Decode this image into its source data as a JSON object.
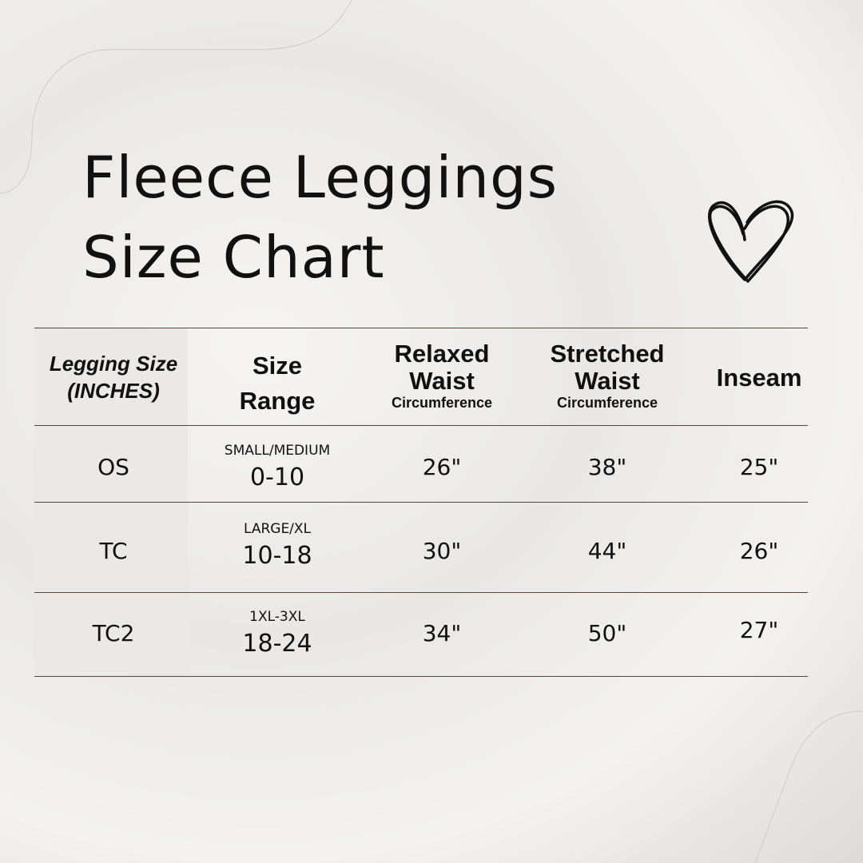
{
  "title_line1": "Fleece Leggings",
  "title_line2": "Size Chart",
  "headers": {
    "legging_size_1": "Legging Size",
    "legging_size_2": "(INCHES)",
    "size_range_1": "Size",
    "size_range_2": "Range",
    "relaxed_1": "Relaxed",
    "relaxed_2": "Waist",
    "relaxed_sub": "Circumference",
    "stretched_1": "Stretched",
    "stretched_2": "Waist",
    "stretched_sub": "Circumference",
    "inseam": "Inseam"
  },
  "rows": [
    {
      "size": "OS",
      "range_label": "SMALL/MEDIUM",
      "range": "0-10",
      "relaxed": "26\"",
      "stretched": "38\"",
      "inseam": "25\""
    },
    {
      "size": "TC",
      "range_label": "LARGE/XL",
      "range": "10-18",
      "relaxed": "30\"",
      "stretched": "44\"",
      "inseam": "26\""
    },
    {
      "size": "TC2",
      "range_label": "1XL-3XL",
      "range": "18-24",
      "relaxed": "34\"",
      "stretched": "50\"",
      "inseam": "27\""
    }
  ],
  "icons": {
    "heart": "heart-icon"
  },
  "colors": {
    "rule": "#5a4638",
    "first_col": "#ebe9e5"
  }
}
